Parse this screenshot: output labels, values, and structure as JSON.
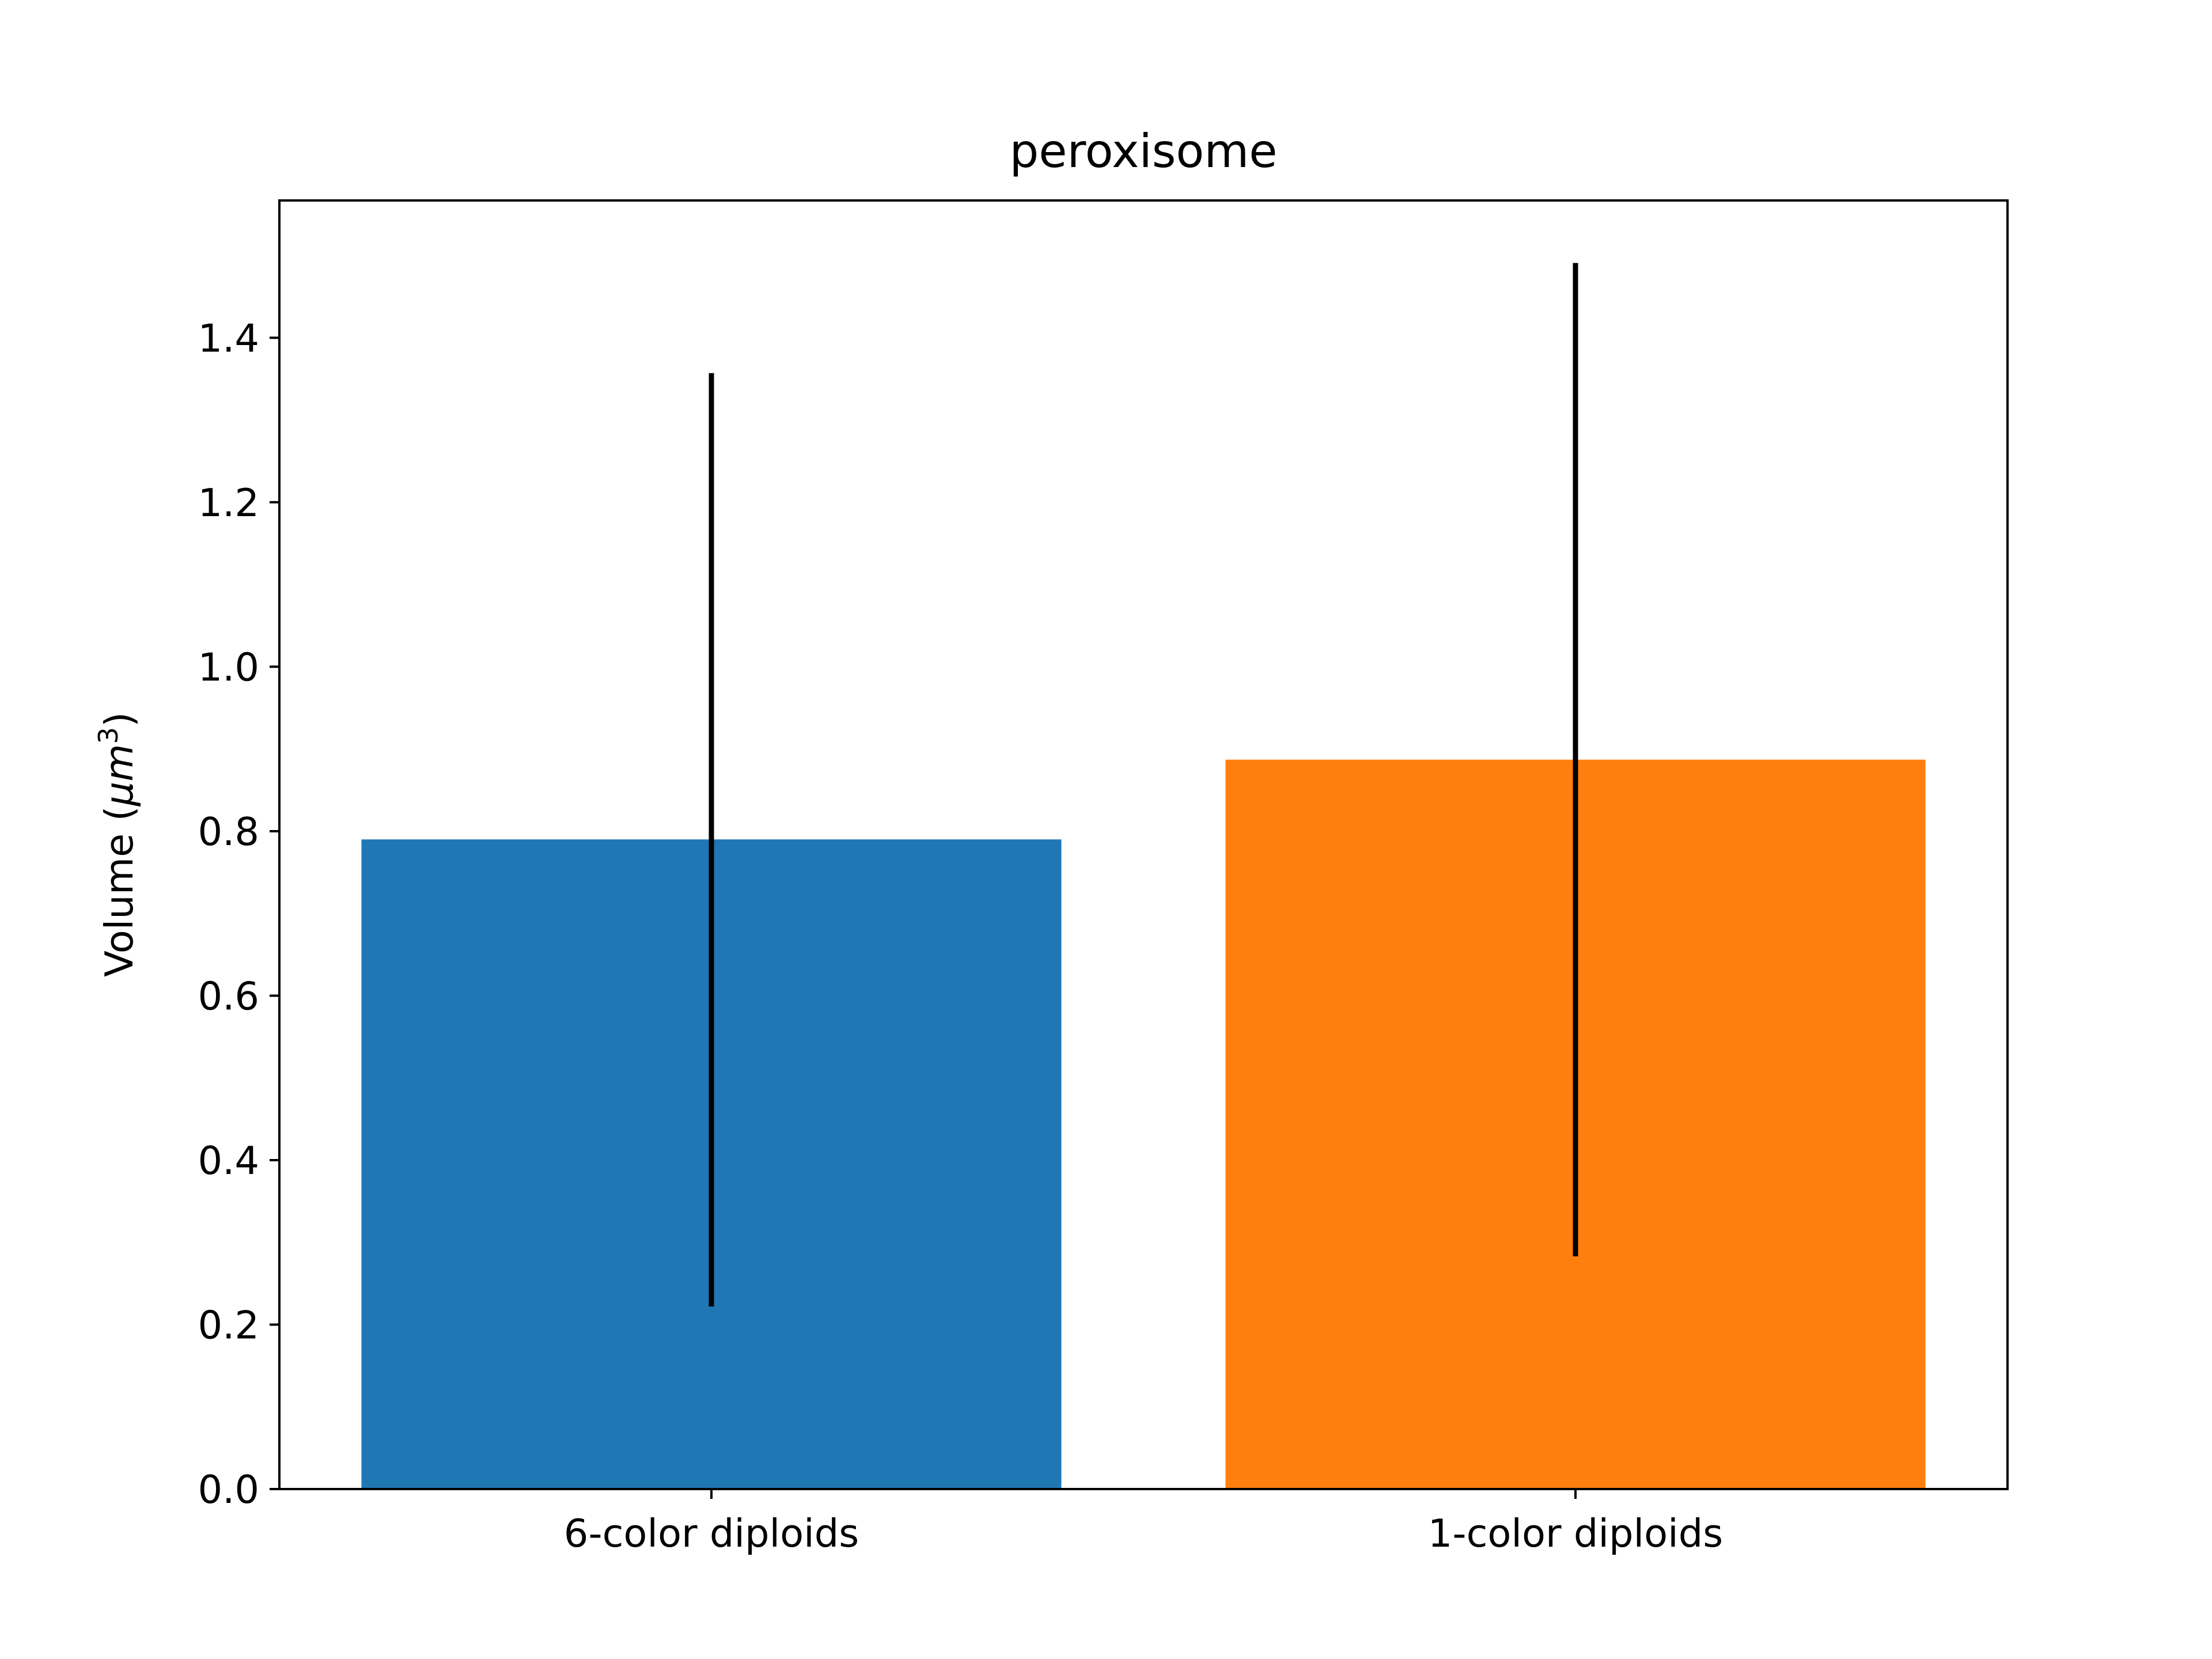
{
  "chart_data": {
    "type": "bar",
    "title": "peroxisome",
    "ylabel_main": "Volume (",
    "ylabel_unit": "μm",
    "ylabel_sup": "3",
    "ylabel_close": ")",
    "categories": [
      "6-color diploids",
      "1-color diploids"
    ],
    "values": [
      0.79,
      0.887
    ],
    "error_low": [
      0.222,
      0.283
    ],
    "error_high": [
      1.357,
      1.491
    ],
    "colors": [
      "#1f77b4",
      "#ff7f0e"
    ],
    "error_color": "#000000",
    "ylim": [
      0,
      1.567
    ],
    "yticks": [
      {
        "value": 0.0,
        "label": "0.0"
      },
      {
        "value": 0.2,
        "label": "0.2"
      },
      {
        "value": 0.4,
        "label": "0.4"
      },
      {
        "value": 0.6,
        "label": "0.6"
      },
      {
        "value": 0.8,
        "label": "0.8"
      },
      {
        "value": 1.0,
        "label": "1.0"
      },
      {
        "value": 1.2,
        "label": "1.2"
      },
      {
        "value": 1.4,
        "label": "1.4"
      }
    ],
    "grid": false,
    "legend": "none"
  }
}
